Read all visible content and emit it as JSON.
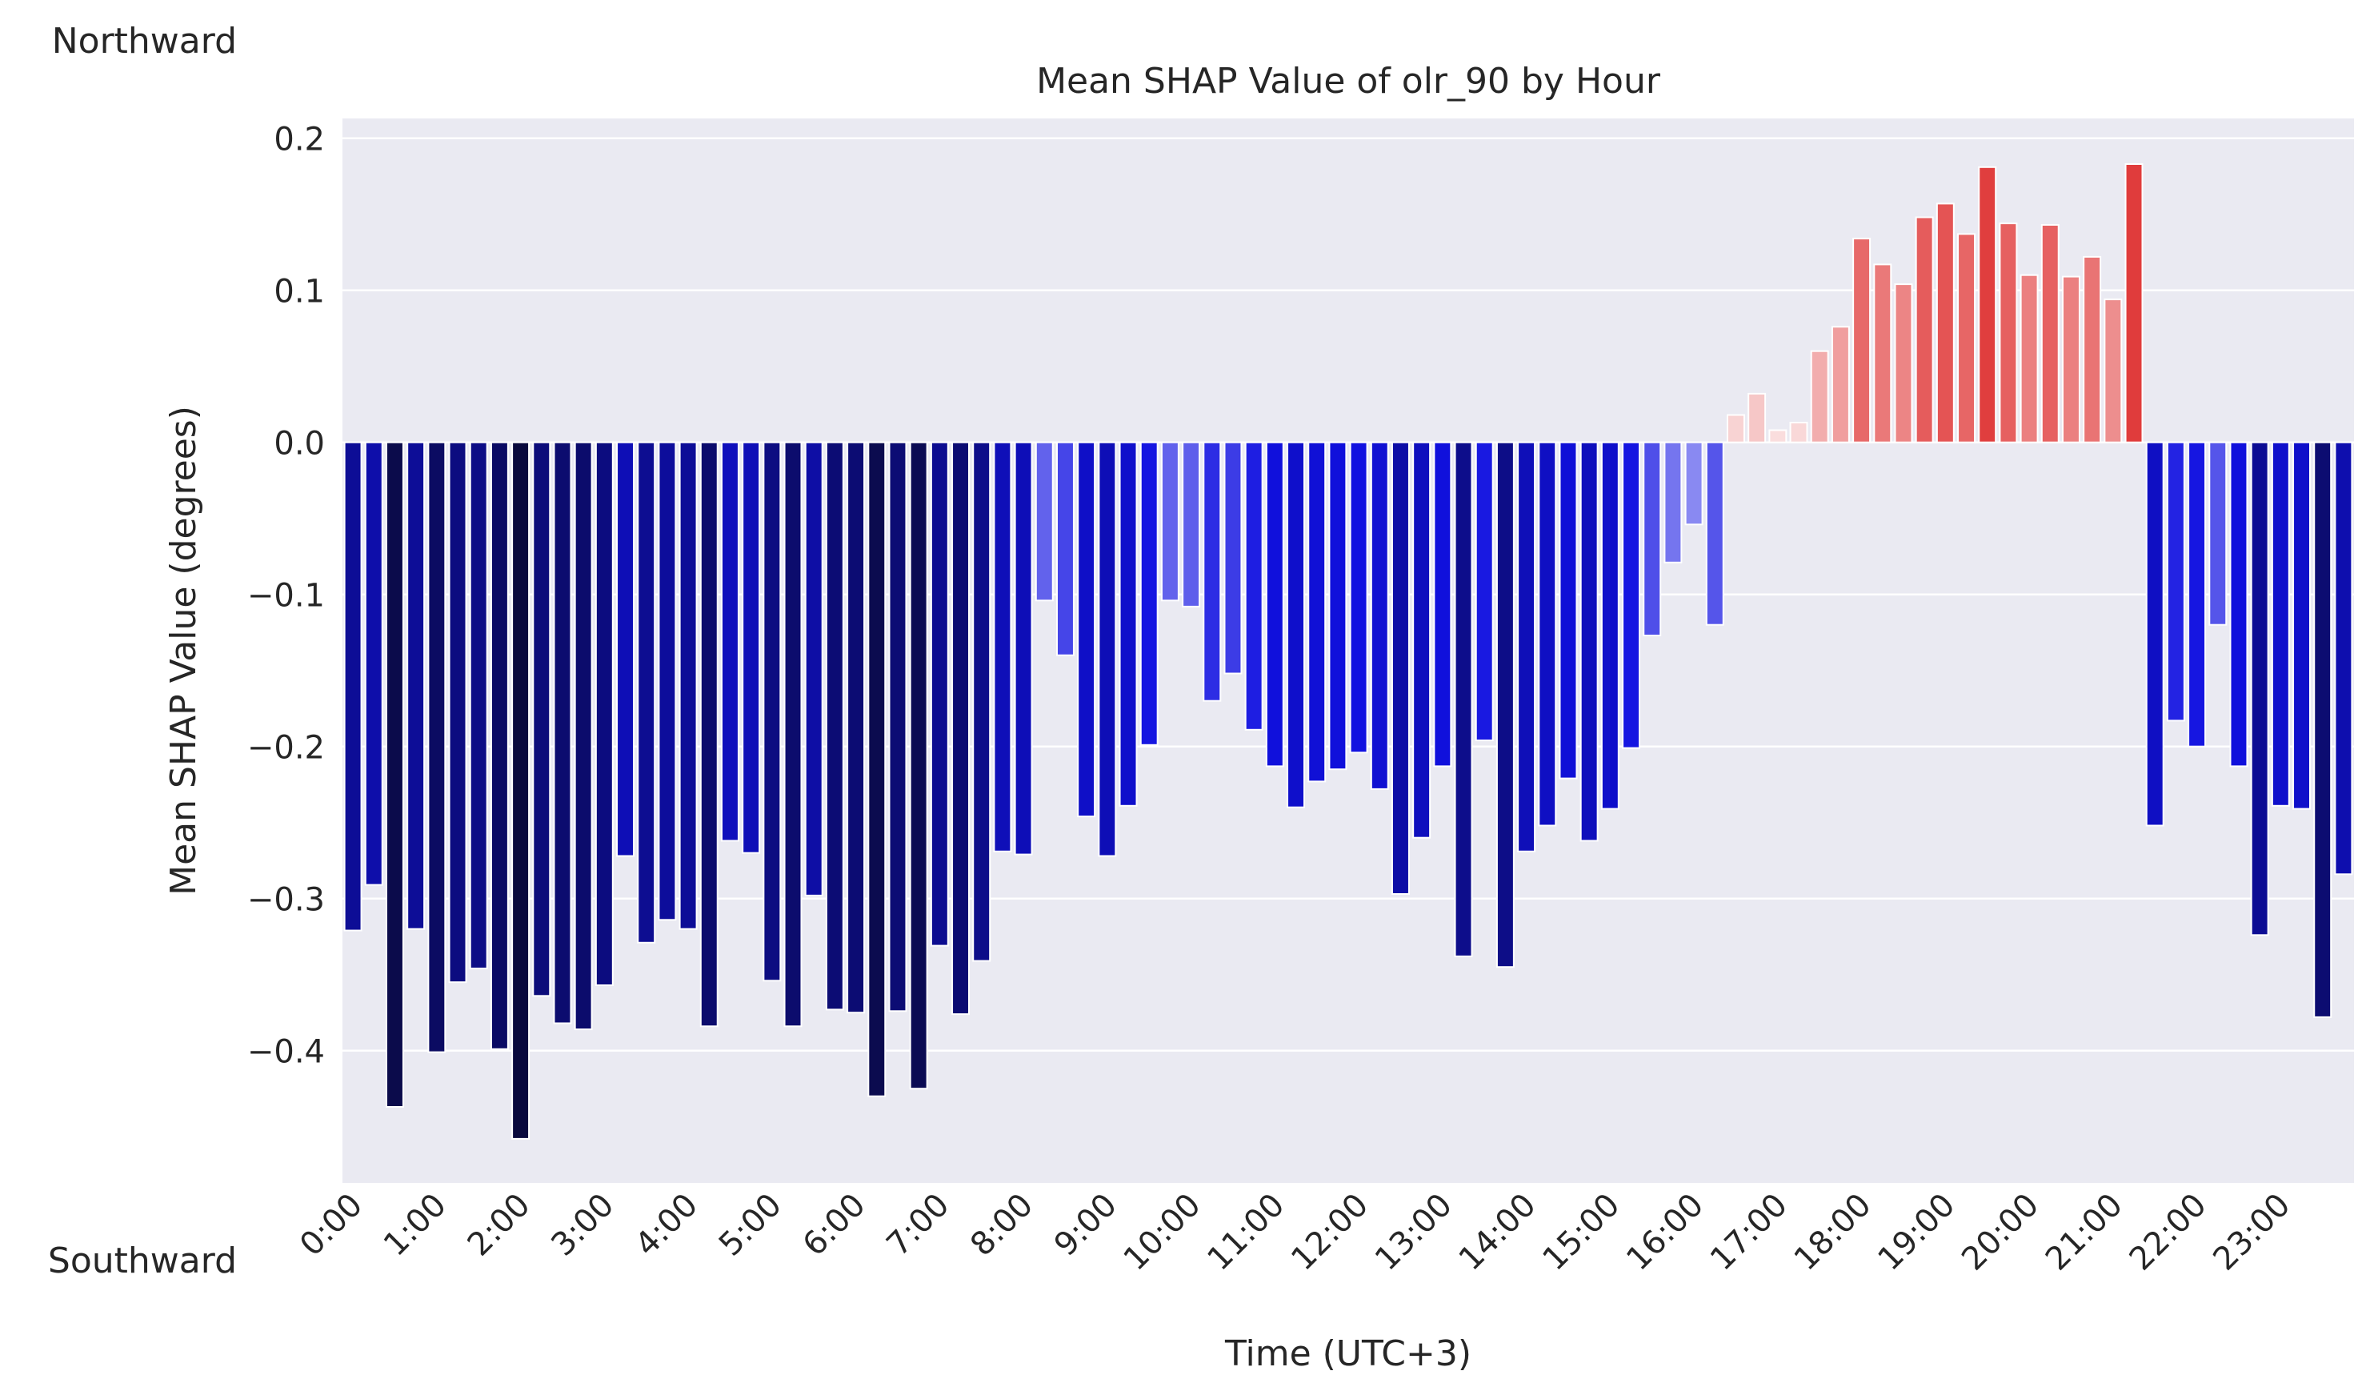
{
  "chart_data": {
    "type": "bar",
    "title": "Mean SHAP Value of olr_90 by Hour",
    "xlabel": "Time (UTC+3)",
    "ylabel": "Mean SHAP Value (degrees)",
    "top_label": "Northward",
    "bottom_label": "Southward",
    "ylim": [
      -0.487,
      0.213
    ],
    "yticks": [
      0.2,
      0.1,
      0.0,
      -0.1,
      -0.2,
      -0.3,
      -0.4
    ],
    "ytick_labels": [
      "0.2",
      "0.1",
      "0.0",
      "−0.1",
      "−0.2",
      "−0.3",
      "−0.4"
    ],
    "grid": true,
    "bars_per_hour": 4,
    "xtick_labels": [
      "0:00",
      "1:00",
      "2:00",
      "3:00",
      "4:00",
      "5:00",
      "6:00",
      "7:00",
      "8:00",
      "9:00",
      "10:00",
      "11:00",
      "12:00",
      "13:00",
      "14:00",
      "15:00",
      "16:00",
      "17:00",
      "18:00",
      "19:00",
      "20:00",
      "21:00",
      "22:00",
      "23:00"
    ],
    "values": [
      -0.321,
      -0.291,
      -0.437,
      -0.32,
      -0.401,
      -0.355,
      -0.346,
      -0.399,
      -0.458,
      -0.364,
      -0.382,
      -0.386,
      -0.357,
      -0.272,
      -0.329,
      -0.314,
      -0.32,
      -0.384,
      -0.262,
      -0.27,
      -0.354,
      -0.384,
      -0.298,
      -0.373,
      -0.375,
      -0.43,
      -0.374,
      -0.425,
      -0.331,
      -0.376,
      -0.341,
      -0.269,
      -0.271,
      -0.104,
      -0.14,
      -0.246,
      -0.272,
      -0.239,
      -0.199,
      -0.104,
      -0.108,
      -0.17,
      -0.152,
      -0.189,
      -0.213,
      -0.24,
      -0.223,
      -0.215,
      -0.204,
      -0.228,
      -0.297,
      -0.26,
      -0.213,
      -0.338,
      -0.196,
      -0.345,
      -0.269,
      -0.252,
      -0.221,
      -0.262,
      -0.241,
      -0.201,
      -0.127,
      -0.079,
      -0.054,
      -0.12,
      0.018,
      0.032,
      0.008,
      0.013,
      0.06,
      0.076,
      0.134,
      0.117,
      0.104,
      0.148,
      0.157,
      0.137,
      0.181,
      0.144,
      0.11,
      0.143,
      0.109,
      0.122,
      0.094,
      0.183,
      -0.252,
      -0.183,
      -0.2,
      -0.12,
      -0.213,
      -0.324,
      -0.239,
      -0.241,
      -0.378,
      -0.284
    ],
    "colors": {
      "background": "#eaeaf2",
      "grid": "#ffffff",
      "negative_dark": "#0a0a3c",
      "negative_mid": "#1010e0",
      "negative_light": "#b4b4f8",
      "positive_light": "#fbe4e4",
      "positive_dark": "#e03c3c"
    }
  }
}
